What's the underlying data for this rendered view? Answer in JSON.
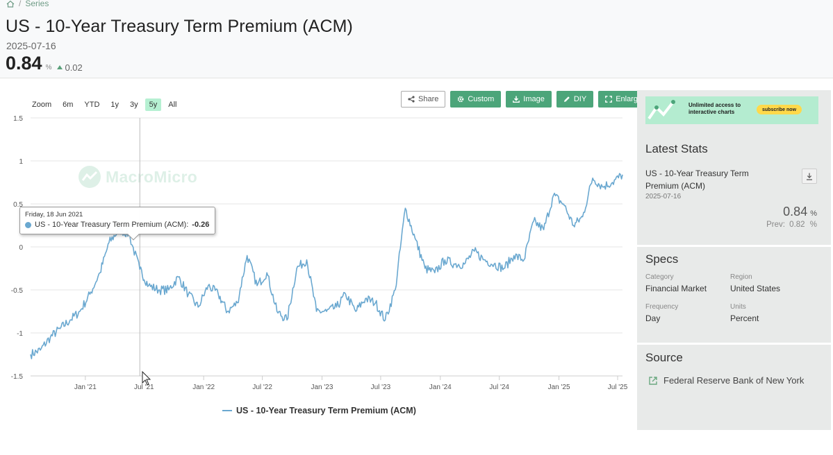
{
  "breadcrumb": {
    "separator": "/",
    "series": "Series"
  },
  "header": {
    "title": "US - 10-Year Treasury Term Premium (ACM)",
    "date": "2025-07-16",
    "value": "0.84",
    "unit": "%",
    "change": "0.02"
  },
  "range": {
    "label": "Zoom",
    "buttons": [
      "6m",
      "YTD",
      "1y",
      "3y",
      "5y",
      "All"
    ],
    "active": "5y"
  },
  "toolbar": {
    "share": "Share",
    "custom": "Custom",
    "image": "Image",
    "diy": "DIY",
    "enlarge": "Enlarge"
  },
  "watermark": "MacroMicro",
  "tooltip": {
    "date": "Friday, 18 Jun 2021",
    "series": "US - 10-Year Treasury Term Premium (ACM):",
    "value": "-0.26"
  },
  "legend": {
    "label": "US - 10-Year Treasury Term Premium (ACM)"
  },
  "promo": {
    "line1": "Unlimited access to",
    "line2": "interactive charts",
    "button": "subscribe now"
  },
  "latest_stats": {
    "heading": "Latest Stats",
    "name": "US - 10-Year Treasury Term Premium (ACM)",
    "date": "2025-07-16",
    "value": "0.84",
    "unit": "%",
    "prev_label": "Prev:",
    "prev_value": "0.82",
    "prev_unit": "%"
  },
  "specs": {
    "heading": "Specs",
    "category_label": "Category",
    "category": "Financial Market",
    "region_label": "Region",
    "region": "United States",
    "frequency_label": "Frequency",
    "frequency": "Day",
    "units_label": "Units",
    "units": "Percent"
  },
  "source": {
    "heading": "Source",
    "name": "Federal Reserve Bank of New York"
  },
  "colors": {
    "series": "#6aa8d0",
    "accent": "#4ca57a",
    "active_range": "#b6f0d2"
  },
  "chart_data": {
    "type": "line",
    "ylim": [
      -1.5,
      1.5
    ],
    "yticks": [
      "1.5",
      "1",
      "0.5",
      "0",
      "-0.5",
      "-1",
      "-1.5"
    ],
    "xticks": [
      "Jan '21",
      "Jul '21",
      "Jan '22",
      "Jul '22",
      "Jan '23",
      "Jul '23",
      "Jan '24",
      "Jul '24",
      "Jan '25",
      "Jul '25"
    ],
    "series": [
      {
        "name": "US - 10-Year Treasury Term Premium (ACM)",
        "x": [
          "2020-07-16",
          "2020-08-15",
          "2020-09-15",
          "2020-10-15",
          "2020-11-15",
          "2020-12-15",
          "2021-01-15",
          "2021-02-15",
          "2021-03-15",
          "2021-04-15",
          "2021-05-15",
          "2021-06-18",
          "2021-07-15",
          "2021-08-15",
          "2021-09-15",
          "2021-10-15",
          "2021-11-15",
          "2021-12-15",
          "2022-01-15",
          "2022-02-15",
          "2022-03-15",
          "2022-04-15",
          "2022-05-15",
          "2022-06-15",
          "2022-07-15",
          "2022-08-15",
          "2022-09-15",
          "2022-10-15",
          "2022-11-15",
          "2022-12-15",
          "2023-01-15",
          "2023-02-15",
          "2023-03-15",
          "2023-04-15",
          "2023-05-15",
          "2023-06-15",
          "2023-07-15",
          "2023-08-15",
          "2023-09-15",
          "2023-10-15",
          "2023-11-15",
          "2023-12-15",
          "2024-01-15",
          "2024-02-15",
          "2024-03-15",
          "2024-04-15",
          "2024-05-15",
          "2024-06-15",
          "2024-07-15",
          "2024-08-15",
          "2024-09-15",
          "2024-10-15",
          "2024-11-15",
          "2024-12-15",
          "2025-01-15",
          "2025-02-15",
          "2025-03-15",
          "2025-04-15",
          "2025-05-15",
          "2025-06-15",
          "2025-07-16"
        ],
        "values": [
          -1.25,
          -1.2,
          -1.05,
          -0.95,
          -0.85,
          -0.75,
          -0.55,
          -0.3,
          0.05,
          0.2,
          0.15,
          -0.26,
          -0.45,
          -0.5,
          -0.5,
          -0.35,
          -0.55,
          -0.7,
          -0.45,
          -0.55,
          -0.75,
          -0.65,
          -0.1,
          -0.45,
          -0.3,
          -0.75,
          -0.85,
          -0.25,
          -0.15,
          -0.75,
          -0.75,
          -0.7,
          -0.55,
          -0.75,
          -0.6,
          -0.65,
          -0.85,
          -0.5,
          0.45,
          0.1,
          -0.25,
          -0.3,
          -0.15,
          -0.2,
          -0.2,
          -0.05,
          -0.15,
          -0.2,
          -0.25,
          -0.1,
          -0.15,
          0.3,
          0.2,
          0.6,
          0.5,
          0.25,
          0.35,
          0.8,
          0.7,
          0.75,
          0.84
        ]
      }
    ]
  }
}
